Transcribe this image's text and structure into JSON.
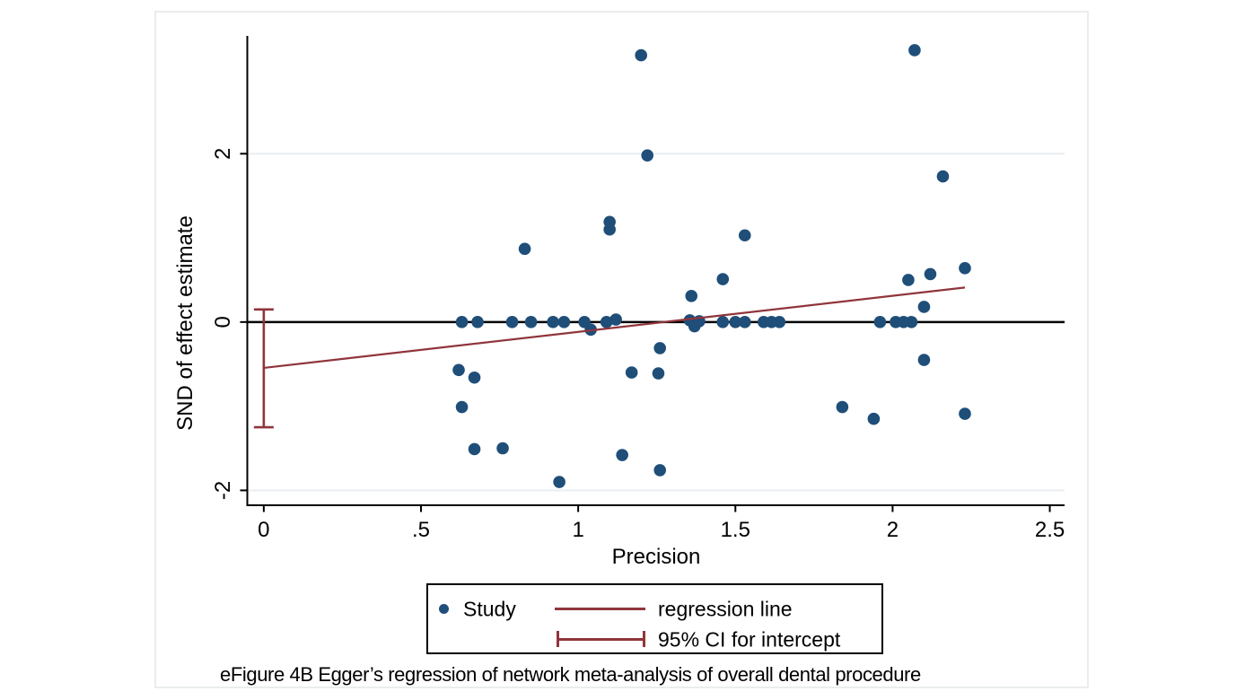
{
  "figure": {
    "caption": "eFigure 4B Egger’s regression of network meta-analysis of overall dental procedure"
  },
  "colors": {
    "point_navy": "#1f4e79",
    "line_maroon": "#90353b",
    "gridline": "#e9eef2",
    "axis_black": "#000000",
    "figure_border": "#e3e7e9"
  },
  "legend": {
    "study_label": "Study",
    "regression_label": "regression line",
    "ci_label": "95% CI for intercept"
  },
  "chart_data": {
    "type": "scatter",
    "title": "",
    "xlabel": "Precision",
    "ylabel": "SND of effect estimate",
    "xlim": [
      -0.051,
      2.547
    ],
    "ylim": [
      -2.177,
      3.4
    ],
    "x_ticks": [
      0,
      0.5,
      1,
      1.5,
      2,
      2.5
    ],
    "x_tick_labels": [
      "0",
      ".5",
      "1",
      "1.5",
      "2",
      "2.5"
    ],
    "y_ticks": [
      -2,
      0,
      2
    ],
    "y_tick_labels": [
      "-2",
      "0",
      "2"
    ],
    "grid_y": [
      -2,
      2
    ],
    "zero_line_y": 0,
    "grid": true,
    "legend_position": "bottom-center",
    "series": [
      {
        "name": "Study",
        "type": "scatter",
        "color": "#1f4e79",
        "points": [
          [
            0.63,
            0.0
          ],
          [
            0.68,
            0.0
          ],
          [
            0.79,
            0.0
          ],
          [
            0.85,
            0.0
          ],
          [
            0.92,
            0.0
          ],
          [
            0.955,
            0.0
          ],
          [
            1.02,
            0.0
          ],
          [
            1.09,
            0.0
          ],
          [
            1.12,
            0.03
          ],
          [
            1.04,
            -0.09
          ],
          [
            1.355,
            0.02
          ],
          [
            1.37,
            -0.05
          ],
          [
            1.385,
            0.01
          ],
          [
            1.46,
            0.0
          ],
          [
            1.5,
            0.0
          ],
          [
            1.53,
            0.0
          ],
          [
            1.59,
            0.0
          ],
          [
            1.615,
            0.0
          ],
          [
            1.64,
            0.0
          ],
          [
            1.96,
            0.0
          ],
          [
            2.01,
            0.0
          ],
          [
            2.035,
            0.0
          ],
          [
            2.06,
            0.0
          ],
          [
            1.2,
            3.17
          ],
          [
            2.07,
            3.23
          ],
          [
            1.22,
            1.98
          ],
          [
            2.16,
            1.73
          ],
          [
            1.1,
            1.19
          ],
          [
            1.1,
            1.1
          ],
          [
            1.53,
            1.03
          ],
          [
            0.83,
            0.87
          ],
          [
            1.46,
            0.51
          ],
          [
            1.36,
            0.31
          ],
          [
            2.05,
            0.5
          ],
          [
            2.12,
            0.57
          ],
          [
            2.23,
            0.64
          ],
          [
            2.1,
            0.18
          ],
          [
            0.62,
            -0.57
          ],
          [
            0.67,
            -0.66
          ],
          [
            0.63,
            -1.01
          ],
          [
            0.67,
            -1.51
          ],
          [
            0.76,
            -1.5
          ],
          [
            0.94,
            -1.9
          ],
          [
            1.14,
            -1.58
          ],
          [
            1.26,
            -1.76
          ],
          [
            1.26,
            -0.31
          ],
          [
            1.17,
            -0.6
          ],
          [
            1.255,
            -0.61
          ],
          [
            1.84,
            -1.01
          ],
          [
            1.94,
            -1.15
          ],
          [
            2.1,
            -0.45
          ],
          [
            2.23,
            -1.09
          ]
        ]
      },
      {
        "name": "regression line",
        "type": "line",
        "color": "#90353b",
        "x": [
          0,
          2.23
        ],
        "y": [
          -0.545,
          0.41
        ],
        "intercept": -0.545,
        "slope": 0.428
      },
      {
        "name": "95% CI for intercept",
        "type": "errorbar",
        "color": "#90353b",
        "x": 0,
        "low": -1.25,
        "high": 0.15
      }
    ]
  }
}
